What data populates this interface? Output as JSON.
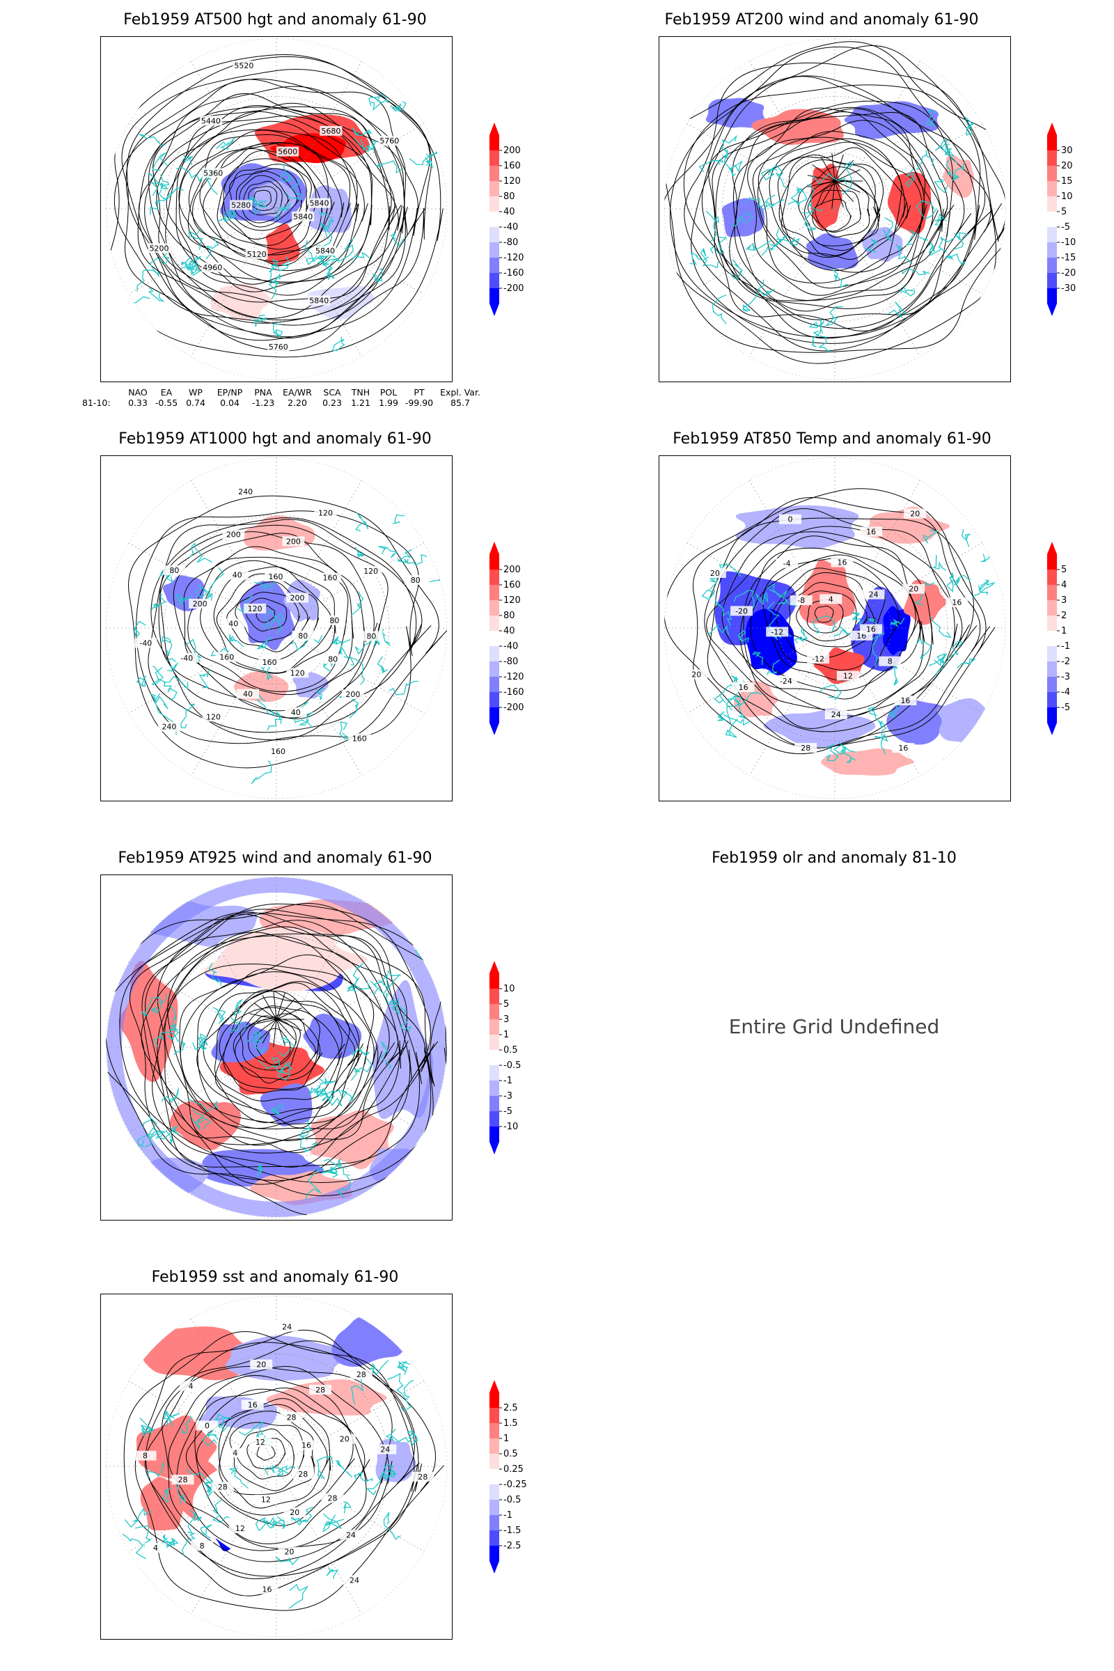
{
  "panels": [
    {
      "id": "at500",
      "title": "Feb1959 AT500 hgt and anomaly 61-90",
      "contour_labels": [
        "5840",
        "5840",
        "5840",
        "5760",
        "5120",
        "4960",
        "5200",
        "5280",
        "5360",
        "5440",
        "5520",
        "5600",
        "5680",
        "5760",
        "5840"
      ],
      "colorbar": [
        "200",
        "160",
        "120",
        "80",
        "40",
        "-40",
        "-80",
        "-120",
        "-160",
        "-200"
      ]
    },
    {
      "id": "at200",
      "title": "Feb1959 AT200 wind and anomaly 61-90",
      "contour_labels": [],
      "colorbar": [
        "30",
        "20",
        "15",
        "10",
        "5",
        "-5",
        "-10",
        "-15",
        "-20",
        "-30"
      ]
    },
    {
      "id": "at1000",
      "title": "Feb1959 AT1000 hgt and anomaly 61-90",
      "contour_labels": [
        "80",
        "80",
        "200",
        "160",
        "120",
        "40",
        "160",
        "160",
        "40",
        "120",
        "240",
        "160",
        "-40",
        "-40",
        "40",
        "200",
        "80",
        "120",
        "40",
        "200",
        "240",
        "160",
        "200",
        "120",
        "200",
        "160",
        "120",
        "80",
        "80",
        "80"
      ],
      "colorbar": [
        "200",
        "160",
        "120",
        "80",
        "40",
        "-40",
        "-80",
        "-120",
        "-160",
        "-200"
      ]
    },
    {
      "id": "at850",
      "title": "Feb1959 AT850 Temp and anomaly 61-90",
      "contour_labels": [
        "16",
        "8",
        "16",
        "16",
        "12",
        "24",
        "28",
        "-12",
        "-24",
        "16",
        "20",
        "-12",
        "-20",
        "20",
        "-8",
        "-4",
        "0",
        "4",
        "16",
        "16",
        "20",
        "24",
        "20",
        "16",
        "16"
      ],
      "colorbar": [
        "5",
        "4",
        "3",
        "2",
        "1",
        "-1",
        "-2",
        "-3",
        "-4",
        "-5"
      ]
    },
    {
      "id": "at925",
      "title": "Feb1959 AT925 wind and anomaly 61-90",
      "contour_labels": [],
      "colorbar": [
        "10",
        "5",
        "3",
        "1",
        "0.5",
        "-0.5",
        "-1",
        "-3",
        "-5",
        "-10"
      ]
    },
    {
      "id": "olr",
      "title": "Feb1959 olr and anomaly 81-10",
      "undefined": "Entire Grid Undefined"
    },
    {
      "id": "sst",
      "title": "Feb1959 sst and anomaly 61-90",
      "contour_labels": [
        "28",
        "28",
        "24",
        "24",
        "20",
        "20",
        "16",
        "12",
        "12",
        "8",
        "4",
        "28",
        "28",
        "8",
        "4",
        "0",
        "4",
        "12",
        "16",
        "20",
        "24",
        "28",
        "28",
        "28",
        "16",
        "20",
        "24",
        "28"
      ],
      "colorbar": [
        "2.5",
        "1.5",
        "1",
        "0.5",
        "0.25",
        "-0.25",
        "-0.5",
        "-1",
        "-1.5",
        "-2.5"
      ]
    }
  ],
  "indices": {
    "headers": [
      "",
      "NAO",
      "EA",
      "WP",
      "EP/NP",
      "PNA",
      "EA/WR",
      "SCA",
      "TNH",
      "POL",
      "PT",
      "Expl. Var."
    ],
    "row_label": "81-10:",
    "values": [
      "0.33",
      "-0.55",
      "0.74",
      "0.04",
      "-1.23",
      "2.20",
      "0.23",
      "1.21",
      "1.99",
      "-99.90",
      "85.7"
    ]
  },
  "colors": {
    "positive": [
      "#ff0000",
      "#ff4d4d",
      "#ff8080",
      "#ffb3b3",
      "#ffdede"
    ],
    "negative": [
      "#dedeff",
      "#b3b3ff",
      "#8080ff",
      "#4d4dff",
      "#0000ff"
    ],
    "coastline": "#22c8c8"
  }
}
